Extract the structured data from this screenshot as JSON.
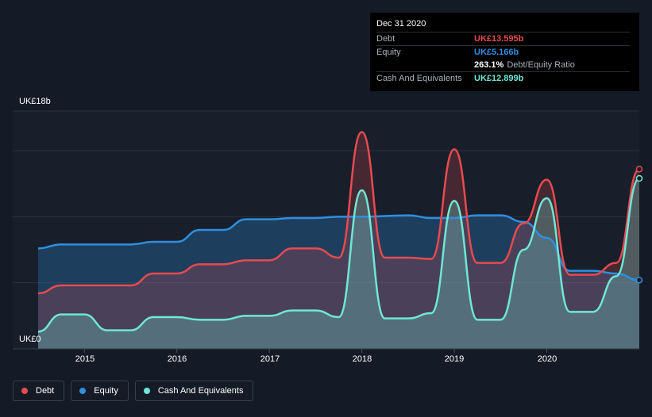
{
  "tooltip": {
    "date": "Dec 31 2020",
    "rows": [
      {
        "label": "Debt",
        "value": "UK£13.595b",
        "color": "#e84a4f"
      },
      {
        "label": "Equity",
        "value": "UK£5.166b",
        "color": "#2e8fe0"
      },
      {
        "label": "",
        "value": "263.1%",
        "sub": "Debt/Equity Ratio",
        "color": "#ffffff"
      },
      {
        "label": "Cash And Equivalents",
        "value": "UK£12.899b",
        "color": "#6ee7d6"
      }
    ]
  },
  "chart_data": {
    "type": "area",
    "title": "",
    "ylabel_top": "UK£18b",
    "ylabel_bottom": "UK£0",
    "ylim": [
      0,
      18
    ],
    "xlim": [
      2014.5,
      2021.0
    ],
    "xticks": [
      "2015",
      "2016",
      "2017",
      "2018",
      "2019",
      "2020"
    ],
    "xtick_values": [
      2015,
      2016,
      2017,
      2018,
      2019,
      2020
    ],
    "series": [
      {
        "name": "Equity",
        "color": "#2e8fe0",
        "points": [
          [
            2014.5,
            7.6
          ],
          [
            2014.75,
            7.9
          ],
          [
            2015.0,
            7.9
          ],
          [
            2015.5,
            7.9
          ],
          [
            2015.75,
            8.1
          ],
          [
            2016.0,
            8.1
          ],
          [
            2016.25,
            9.0
          ],
          [
            2016.5,
            9.0
          ],
          [
            2016.75,
            9.8
          ],
          [
            2017.0,
            9.8
          ],
          [
            2017.25,
            9.9
          ],
          [
            2017.5,
            9.9
          ],
          [
            2017.75,
            10.0
          ],
          [
            2018.0,
            10.0
          ],
          [
            2018.5,
            10.1
          ],
          [
            2018.75,
            9.9
          ],
          [
            2019.0,
            9.9
          ],
          [
            2019.25,
            10.1
          ],
          [
            2019.5,
            10.1
          ],
          [
            2019.75,
            9.6
          ],
          [
            2020.0,
            8.4
          ],
          [
            2020.25,
            5.9
          ],
          [
            2020.5,
            5.9
          ],
          [
            2020.75,
            5.7
          ],
          [
            2021.0,
            5.2
          ]
        ]
      },
      {
        "name": "Debt",
        "color": "#e84a4f",
        "points": [
          [
            2014.5,
            4.2
          ],
          [
            2014.75,
            4.8
          ],
          [
            2015.0,
            4.8
          ],
          [
            2015.5,
            4.8
          ],
          [
            2015.75,
            5.7
          ],
          [
            2016.0,
            5.7
          ],
          [
            2016.25,
            6.4
          ],
          [
            2016.5,
            6.4
          ],
          [
            2016.75,
            6.7
          ],
          [
            2017.0,
            6.7
          ],
          [
            2017.25,
            7.6
          ],
          [
            2017.5,
            7.6
          ],
          [
            2017.75,
            6.9
          ],
          [
            2018.0,
            16.4
          ],
          [
            2018.25,
            6.9
          ],
          [
            2018.5,
            6.9
          ],
          [
            2018.75,
            6.8
          ],
          [
            2019.0,
            15.1
          ],
          [
            2019.25,
            6.5
          ],
          [
            2019.5,
            6.5
          ],
          [
            2019.75,
            9.5
          ],
          [
            2020.0,
            12.8
          ],
          [
            2020.25,
            5.6
          ],
          [
            2020.5,
            5.6
          ],
          [
            2020.75,
            6.5
          ],
          [
            2021.0,
            13.6
          ]
        ]
      },
      {
        "name": "Cash And Equivalents",
        "color": "#6ee7d6",
        "points": [
          [
            2014.5,
            1.3
          ],
          [
            2014.75,
            2.6
          ],
          [
            2015.0,
            2.6
          ],
          [
            2015.25,
            1.4
          ],
          [
            2015.5,
            1.4
          ],
          [
            2015.75,
            2.4
          ],
          [
            2016.0,
            2.4
          ],
          [
            2016.25,
            2.2
          ],
          [
            2016.5,
            2.2
          ],
          [
            2016.75,
            2.5
          ],
          [
            2017.0,
            2.5
          ],
          [
            2017.25,
            2.9
          ],
          [
            2017.5,
            2.9
          ],
          [
            2017.75,
            2.4
          ],
          [
            2018.0,
            12.0
          ],
          [
            2018.25,
            2.3
          ],
          [
            2018.5,
            2.3
          ],
          [
            2018.75,
            2.7
          ],
          [
            2019.0,
            11.2
          ],
          [
            2019.25,
            2.2
          ],
          [
            2019.5,
            2.2
          ],
          [
            2019.75,
            7.5
          ],
          [
            2020.0,
            11.4
          ],
          [
            2020.25,
            2.8
          ],
          [
            2020.5,
            2.8
          ],
          [
            2020.75,
            5.5
          ],
          [
            2021.0,
            12.9
          ]
        ]
      }
    ]
  },
  "legend": [
    {
      "label": "Debt",
      "color": "#e84a4f"
    },
    {
      "label": "Equity",
      "color": "#2e8fe0"
    },
    {
      "label": "Cash And Equivalents",
      "color": "#6ee7d6"
    }
  ]
}
